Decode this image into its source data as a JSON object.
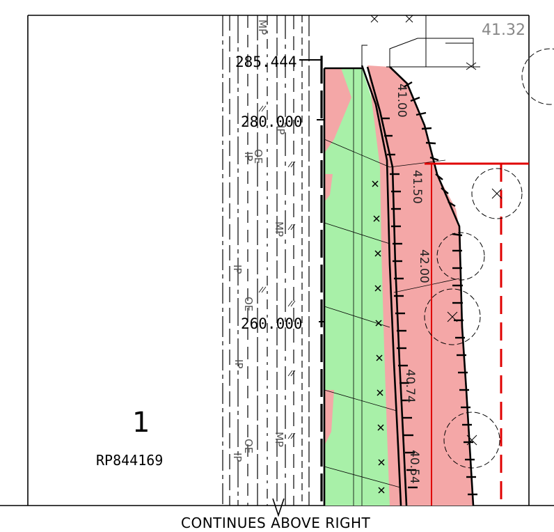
{
  "chainages": [
    "285.444",
    "280.000",
    "260.000"
  ],
  "level_label": "41.32",
  "lot": {
    "number": "1",
    "plan": "RP844169"
  },
  "continuation_note": "CONTINUES ABOVE RIGHT",
  "service_labels": [
    "MP",
    "IP",
    "OE",
    "IP",
    "MP",
    "OE",
    "IP",
    "IP",
    "MP",
    "OE",
    "IP"
  ],
  "vertical_labels": [
    "41.00",
    "41.50",
    "42.00",
    "40.74",
    "40.54"
  ],
  "fill_colors": {
    "cut": "#f4a7a7",
    "fill": "#a8f0a8",
    "boundary": "#e00000"
  }
}
